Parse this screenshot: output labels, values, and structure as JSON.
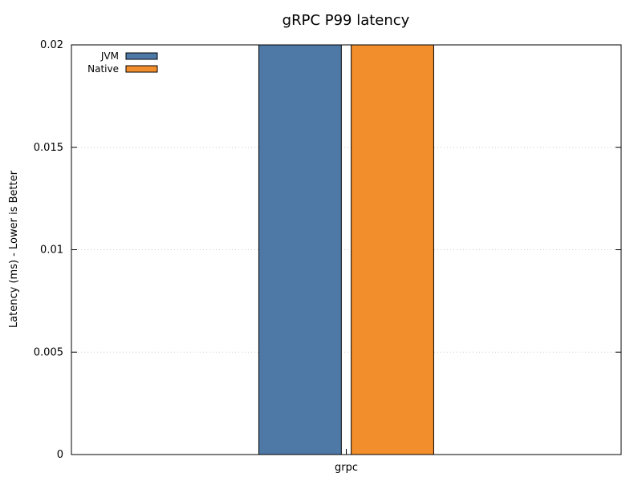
{
  "chart_data": {
    "type": "bar",
    "title": "gRPC P99 latency",
    "xlabel": "",
    "ylabel": "Latency (ms) - Lower is Better",
    "categories": [
      "grpc"
    ],
    "series": [
      {
        "name": "JVM",
        "values": [
          0.02
        ],
        "color": "#4e79a7"
      },
      {
        "name": "Native",
        "values": [
          0.02
        ],
        "color": "#f28e2b"
      }
    ],
    "ylim": [
      0,
      0.02
    ],
    "yticks": [
      "0",
      "0.005",
      "0.01",
      "0.015",
      "0.02"
    ],
    "ytick_values": [
      0,
      0.005,
      0.01,
      0.015,
      0.02
    ],
    "grid": "horizontal dotted",
    "legend_position": "top-left"
  }
}
